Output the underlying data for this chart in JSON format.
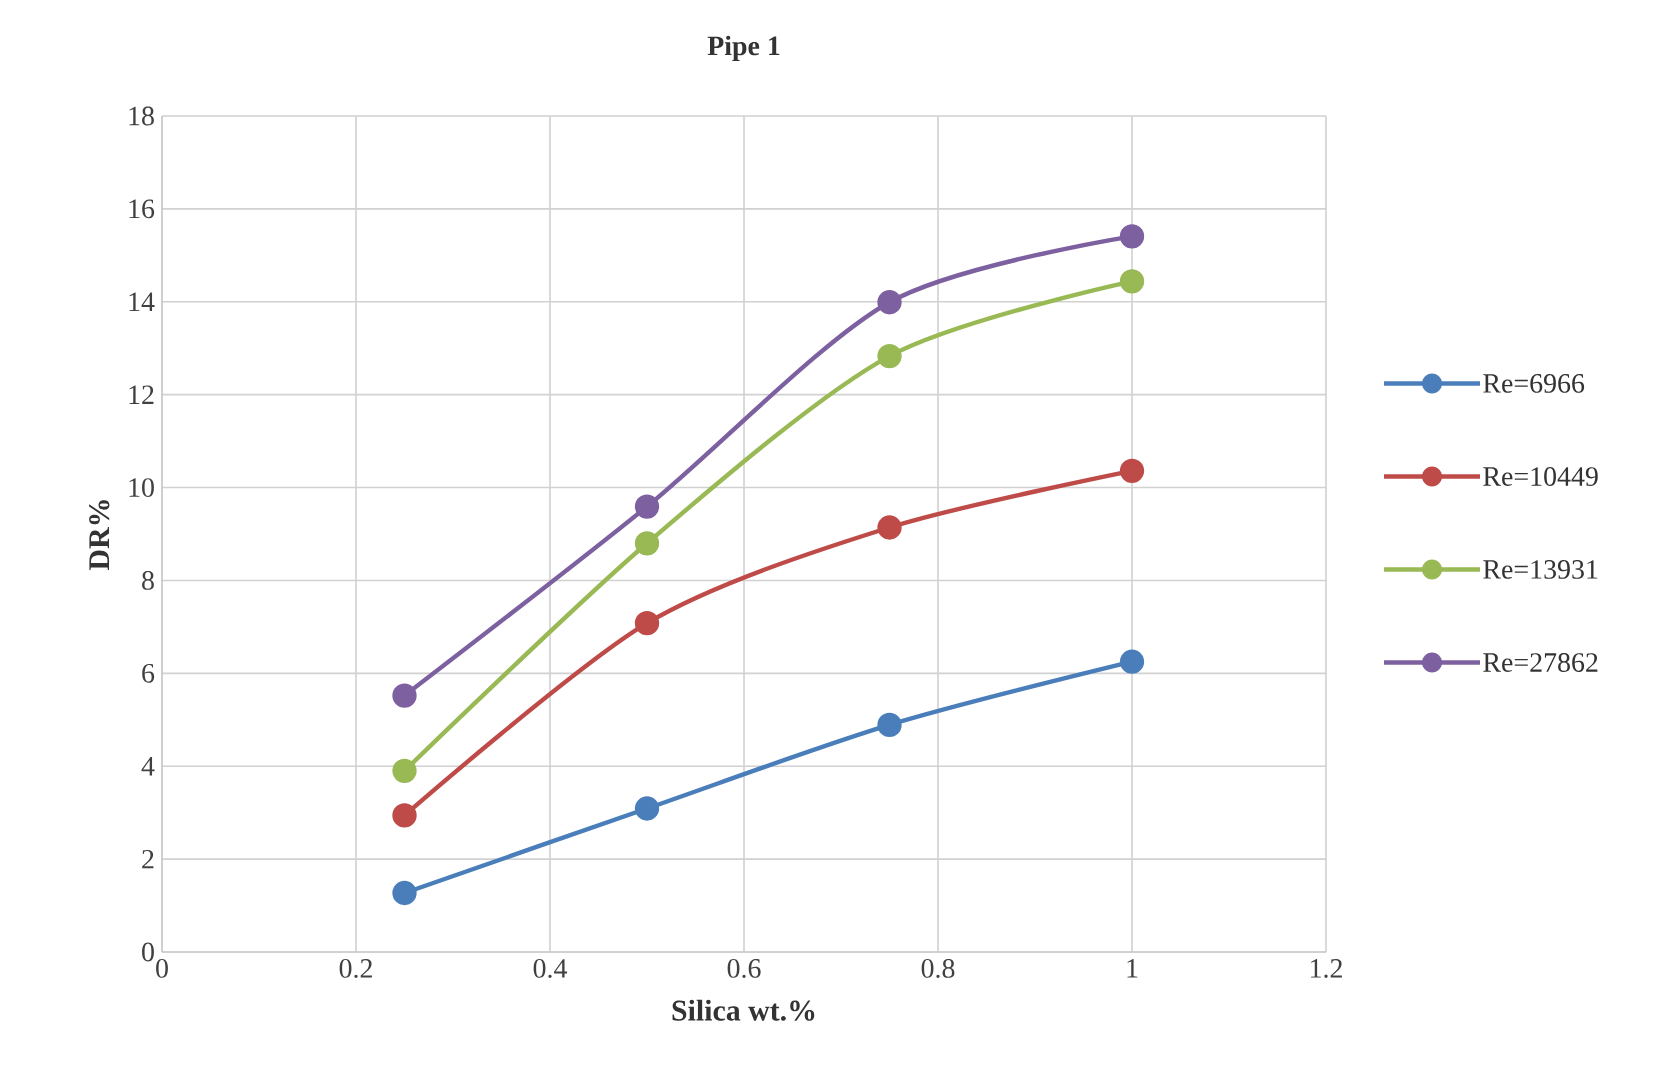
{
  "chart_data": {
    "type": "line",
    "title": "Pipe 1",
    "xlabel": "Silica wt.%",
    "ylabel": "DR%",
    "x": [
      0.25,
      0.5,
      0.75,
      1
    ],
    "series": [
      {
        "name": "Re=6966",
        "color": "#4a7ebb",
        "values": [
          1.27,
          3.09,
          4.89,
          6.25
        ]
      },
      {
        "name": "Re=10449",
        "color": "#be4b48",
        "values": [
          2.94,
          7.08,
          9.14,
          10.36
        ]
      },
      {
        "name": "Re=13931",
        "color": "#98b954",
        "values": [
          3.9,
          8.8,
          12.83,
          14.44
        ]
      },
      {
        "name": "Re=27862",
        "color": "#7d60a0",
        "values": [
          5.52,
          9.59,
          13.99,
          15.41
        ]
      }
    ],
    "xlim": [
      0,
      1.2
    ],
    "xticks": [
      0,
      0.2,
      0.4,
      0.6,
      0.8,
      1,
      1.2
    ],
    "ylim": [
      0,
      18
    ],
    "yticks": [
      0,
      2,
      4,
      6,
      8,
      10,
      12,
      14,
      16,
      18
    ],
    "grid": true,
    "legend": "right",
    "marker": "circle",
    "line_style": "solid"
  }
}
